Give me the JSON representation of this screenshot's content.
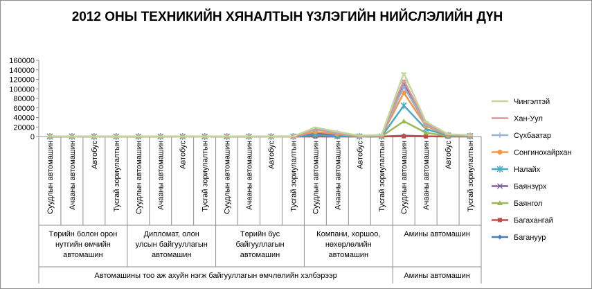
{
  "chart_data": {
    "type": "line",
    "title": "2012 ОНЫ ТЕХНИКИЙН ХЯНАЛТЫН ҮЗЛЭГИЙН НИЙСЛЭЛИЙН ДҮН",
    "ylim": [
      0,
      160000
    ],
    "yticks": [
      "0",
      "20000",
      "40000",
      "60000",
      "80000",
      "100000",
      "120000",
      "140000",
      "160000"
    ],
    "categories": [
      "Суудлын автомашин",
      "Ачааны автомашин",
      "Автобус",
      "Тусгай зориулалтын",
      "Суудлын автомашин",
      "Ачааны автомашин",
      "Автобус",
      "Тусгай зориулалтын",
      "Суудлын автомашин",
      "Ачааны автомашин",
      "Автобус",
      "Тусгай зориулалтын",
      "Суудлын автомашин",
      "Ачааны автомашин",
      "Автобус",
      "Тусгай зориулалтын",
      "Суудлын автомашин",
      "Ачааны автомашин",
      "Автобус",
      "Тусгай зориулалтын"
    ],
    "groups": [
      {
        "label": "Төрийн болон орон нутгийн өмчийн автомашин",
        "span": 4
      },
      {
        "label": "Дипломат, олон улсын байгууллагын автомашин",
        "span": 4
      },
      {
        "label": "Төрийн бус байгууллагын автомашин",
        "span": 4
      },
      {
        "label": "Компани, хоршоо, нөхөрлөлийн автомашин",
        "span": 4
      },
      {
        "label": "Амины автомашин",
        "span": 4
      }
    ],
    "supergroups": [
      {
        "label": "Автомашины тоо аж ахуйн нэгж байгууллагын өмчлөлийн хэлбэрээр",
        "span": 16
      },
      {
        "label": "Амины автомашин",
        "span": 4
      }
    ],
    "series": [
      {
        "name": "Баганууp",
        "color": "#4a7ebb",
        "marker": "diamond",
        "values": [
          10,
          5,
          2,
          3,
          0,
          0,
          0,
          0,
          5,
          3,
          1,
          1,
          100,
          50,
          20,
          30,
          2000,
          500,
          100,
          100
        ]
      },
      {
        "name": "Багахангай",
        "color": "#be4b48",
        "marker": "square",
        "values": [
          5,
          2,
          1,
          1,
          0,
          0,
          0,
          0,
          2,
          1,
          0,
          0,
          50,
          20,
          5,
          5,
          500,
          300,
          50,
          50
        ]
      },
      {
        "name": "Баянгол",
        "color": "#98b954",
        "marker": "triangle",
        "values": [
          300,
          100,
          50,
          80,
          100,
          50,
          20,
          10,
          200,
          100,
          30,
          50,
          5000,
          2000,
          300,
          400,
          32000,
          8000,
          1000,
          800
        ]
      },
      {
        "name": "Баянзүрх",
        "color": "#7d60a0",
        "marker": "x",
        "values": [
          350,
          150,
          60,
          80,
          80,
          40,
          10,
          10,
          250,
          120,
          40,
          40,
          7000,
          3000,
          500,
          700,
          110000,
          24000,
          3000,
          1500
        ]
      },
      {
        "name": "Налайх",
        "color": "#46aac5",
        "marker": "star",
        "values": [
          100,
          50,
          20,
          30,
          10,
          5,
          2,
          2,
          50,
          20,
          5,
          10,
          3000,
          1000,
          200,
          300,
          65000,
          16000,
          2000,
          1000
        ]
      },
      {
        "name": "Сонгинохайрхан",
        "color": "#f79646",
        "marker": "circle",
        "values": [
          300,
          120,
          50,
          70,
          50,
          20,
          10,
          5,
          200,
          100,
          30,
          40,
          10000,
          5000,
          800,
          1500,
          92000,
          22000,
          3000,
          1800
        ]
      },
      {
        "name": "Сүхбаатар",
        "color": "#95b3d7",
        "marker": "plus",
        "values": [
          400,
          150,
          60,
          90,
          200,
          80,
          20,
          10,
          300,
          150,
          40,
          60,
          15000,
          7000,
          1200,
          2500,
          105000,
          25000,
          4000,
          2200
        ]
      },
      {
        "name": "Хан-Уул",
        "color": "#d99694",
        "marker": "dash",
        "values": [
          450,
          180,
          70,
          100,
          250,
          100,
          25,
          15,
          350,
          180,
          50,
          80,
          17000,
          8500,
          1500,
          3000,
          118000,
          28000,
          4500,
          2500
        ]
      },
      {
        "name": "Чингэлтэй",
        "color": "#c3d69b",
        "marker": "dash",
        "values": [
          500,
          200,
          80,
          120,
          300,
          120,
          30,
          20,
          400,
          200,
          60,
          100,
          19000,
          10000,
          1800,
          3500,
          133000,
          31000,
          5000,
          3000
        ]
      }
    ],
    "legend_position": "right",
    "grid": false
  }
}
